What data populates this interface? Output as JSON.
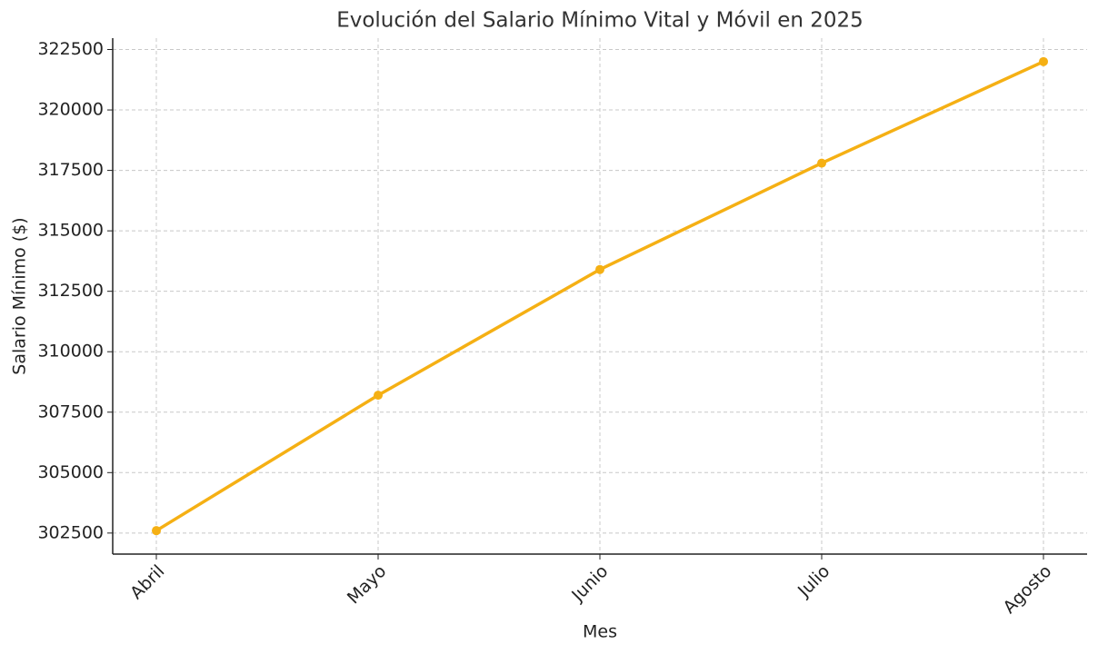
{
  "chart_data": {
    "type": "line",
    "title": "Evolución del Salario Mínimo Vital y Móvil en 2025",
    "x_label": "Mes",
    "y_label": "Salario Mínimo ($)",
    "categories": [
      "Abril",
      "Mayo",
      "Junio",
      "Julio",
      "Agosto"
    ],
    "series": [
      {
        "name": "Salario Mínimo",
        "color": "#f5b014",
        "values": [
          302600,
          308200,
          313400,
          317800,
          322000
        ]
      }
    ],
    "ylim": [
      301630,
      322970
    ],
    "yticks": [
      302500,
      305000,
      307500,
      310000,
      312500,
      315000,
      317500,
      320000,
      322500
    ],
    "grid": true
  }
}
